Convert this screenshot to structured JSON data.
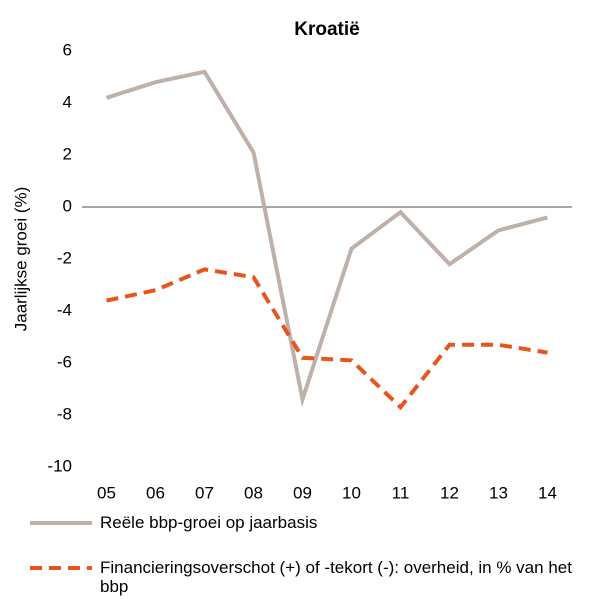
{
  "chart_data": {
    "type": "line",
    "title": "Kroatië",
    "y_label": "Jaarlijkse groei (%)",
    "categories": [
      "05",
      "06",
      "07",
      "08",
      "09",
      "10",
      "11",
      "12",
      "13",
      "14"
    ],
    "series": [
      {
        "name": "Reële bbp-groei op jaarbasis",
        "color": "#bfb1a9",
        "line_style": "solid",
        "values": [
          4.2,
          4.8,
          5.2,
          2.1,
          -7.4,
          -1.6,
          -0.2,
          -2.2,
          -0.9,
          -0.4
        ]
      },
      {
        "name": "Financieringsoverschot (+) of -tekort (-): overheid, in % van het bbp",
        "color": "#e8541e",
        "line_style": "dashed",
        "values": [
          -3.6,
          -3.2,
          -2.4,
          -2.7,
          -5.8,
          -5.9,
          -7.7,
          -5.3,
          -5.3,
          -5.6
        ]
      }
    ],
    "ylim": [
      -10,
      6
    ],
    "yticks": [
      -10,
      -8,
      -6,
      -4,
      -2,
      0,
      2,
      4,
      6
    ],
    "zero_line": true,
    "grid": false,
    "legend": "bottom"
  }
}
